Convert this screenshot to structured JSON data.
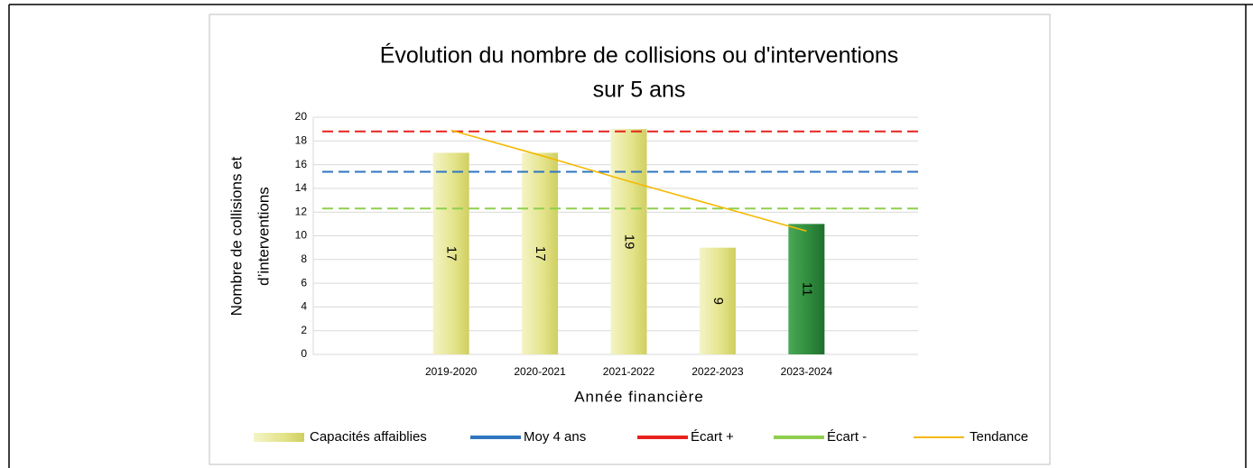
{
  "chart_data": {
    "type": "bar",
    "title": [
      "Évolution du nombre  de collisions ou d'interventions",
      "sur 5 ans"
    ],
    "x_label": "Année financière",
    "y_label": [
      "Nombre de collisions et",
      "d’interventions"
    ],
    "categories": [
      null,
      "2019-2020",
      "2020-2021",
      "2021-2022",
      "2022-2023",
      "2023-2024",
      null
    ],
    "series": [
      {
        "name": "Capacités affaiblies",
        "type": "bar",
        "color": "#e3e38a",
        "values": [
          null,
          17,
          17,
          19,
          9,
          11,
          null
        ],
        "colors": [
          null,
          "#e3e38a",
          "#e3e38a",
          "#e3e38a",
          "#e3e38a",
          "#2e8a3c",
          null
        ]
      },
      {
        "name": "Moy 4 ans",
        "type": "line",
        "dashed": true,
        "color": "#2f75c0",
        "values": [
          15.4,
          15.4,
          15.4,
          15.4,
          15.4,
          15.4,
          15.4
        ]
      },
      {
        "name": "Écart +",
        "type": "line",
        "dashed": true,
        "color": "#e8211d",
        "values": [
          18.8,
          18.8,
          18.8,
          18.8,
          18.8,
          18.8,
          18.8
        ]
      },
      {
        "name": "Écart -",
        "type": "line",
        "dashed": true,
        "color": "#8fcf4f",
        "values": [
          12.3,
          12.3,
          12.3,
          12.3,
          12.3,
          12.3,
          12.3
        ]
      },
      {
        "name": "Tendance",
        "type": "line",
        "dashed": false,
        "color": "#f5b800",
        "values": [
          null,
          18.9,
          16.8,
          14.6,
          12.5,
          10.4,
          null
        ]
      }
    ],
    "ylim": [
      0,
      20
    ],
    "yticks": [
      0,
      2,
      4,
      6,
      8,
      10,
      12,
      14,
      16,
      18,
      20
    ],
    "grid": true,
    "legend": "bottom"
  }
}
